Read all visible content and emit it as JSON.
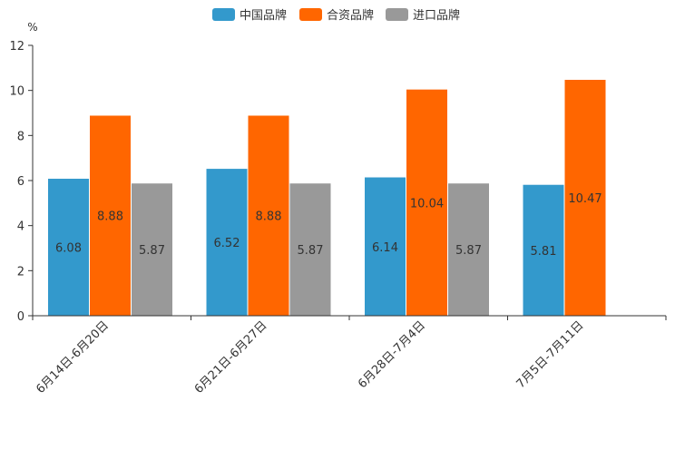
{
  "chart_data": {
    "type": "bar",
    "title": "",
    "unit": "%",
    "xlabel": "",
    "ylabel": "",
    "ylim": [
      0,
      12
    ],
    "yticks": [
      0,
      2,
      4,
      6,
      8,
      10,
      12
    ],
    "legend_position": "top-center",
    "grid": false,
    "categories": [
      "6月14日-6月20日",
      "6月21日-6月27日",
      "6月28日-7月4日",
      "7月5日-7月11日"
    ],
    "series": [
      {
        "name": "中国品牌",
        "color": "#3399cc",
        "values": [
          6.08,
          6.52,
          6.14,
          5.81
        ]
      },
      {
        "name": "合资品牌",
        "color": "#ff6600",
        "values": [
          8.88,
          8.88,
          10.04,
          10.47
        ]
      },
      {
        "name": "进口品牌",
        "color": "#999999",
        "values": [
          5.87,
          5.87,
          5.87,
          null
        ]
      }
    ]
  }
}
